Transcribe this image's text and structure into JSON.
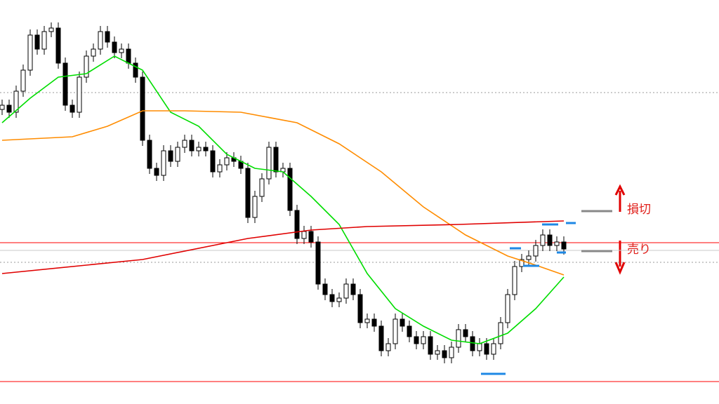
{
  "chart_data": {
    "type": "candlestick",
    "ylim": [
      0,
      576
    ],
    "open": [
      420,
      426,
      416,
      446,
      476,
      526,
      506,
      531,
      536,
      486,
      426,
      416,
      466,
      496,
      506,
      531,
      516,
      501,
      506,
      486,
      466,
      376,
      336,
      326,
      361,
      346,
      366,
      376,
      361,
      366,
      361,
      331,
      341,
      351,
      346,
      336,
      266,
      296,
      321,
      366,
      331,
      336,
      276,
      236,
      246,
      231,
      171,
      156,
      146,
      151,
      171,
      156,
      116,
      121,
      111,
      76,
      86,
      121,
      111,
      96,
      86,
      96,
      71,
      76,
      66,
      81,
      106,
      96,
      76,
      86,
      71,
      86,
      116,
      156,
      196,
      206,
      211,
      226,
      241,
      226,
      231
    ],
    "high": [
      434,
      434,
      454,
      484,
      534,
      534,
      539,
      544,
      544,
      494,
      434,
      474,
      504,
      514,
      539,
      539,
      524,
      514,
      514,
      494,
      474,
      384,
      344,
      369,
      369,
      374,
      384,
      384,
      374,
      374,
      369,
      349,
      359,
      359,
      354,
      344,
      304,
      329,
      374,
      374,
      344,
      344,
      284,
      254,
      254,
      239,
      179,
      164,
      159,
      179,
      179,
      164,
      129,
      129,
      119,
      94,
      129,
      129,
      119,
      104,
      104,
      104,
      84,
      84,
      89,
      114,
      114,
      104,
      94,
      94,
      94,
      124,
      164,
      204,
      214,
      219,
      234,
      249,
      249,
      239,
      239
    ],
    "low": [
      412,
      408,
      408,
      438,
      468,
      498,
      498,
      523,
      478,
      418,
      408,
      408,
      458,
      488,
      498,
      508,
      493,
      493,
      478,
      458,
      368,
      328,
      318,
      318,
      338,
      338,
      358,
      353,
      353,
      353,
      323,
      323,
      333,
      338,
      328,
      258,
      258,
      288,
      313,
      323,
      323,
      268,
      228,
      228,
      223,
      163,
      148,
      138,
      138,
      143,
      148,
      108,
      108,
      103,
      68,
      68,
      78,
      103,
      88,
      78,
      78,
      63,
      63,
      58,
      58,
      73,
      88,
      68,
      68,
      63,
      63,
      78,
      108,
      148,
      188,
      198,
      203,
      218,
      218,
      218,
      213
    ],
    "close": [
      426,
      416,
      446,
      476,
      526,
      506,
      531,
      536,
      486,
      426,
      416,
      466,
      496,
      506,
      531,
      516,
      501,
      506,
      486,
      466,
      376,
      336,
      326,
      361,
      346,
      366,
      376,
      361,
      366,
      361,
      331,
      341,
      351,
      346,
      336,
      266,
      296,
      321,
      366,
      331,
      336,
      276,
      236,
      246,
      231,
      171,
      156,
      146,
      151,
      171,
      156,
      116,
      121,
      111,
      76,
      86,
      121,
      111,
      96,
      86,
      96,
      71,
      76,
      66,
      81,
      106,
      96,
      76,
      86,
      71,
      86,
      116,
      156,
      196,
      206,
      211,
      226,
      241,
      226,
      231,
      221
    ],
    "lines": [
      {
        "color": "#00dd00",
        "x": [
          0,
          4,
          8,
          12,
          16,
          20,
          24,
          28,
          32,
          36,
          40,
          44,
          48,
          52,
          56,
          60,
          64,
          68,
          72,
          76,
          80
        ],
        "values": [
          401,
          436,
          466,
          471,
          496,
          476,
          416,
          396,
          356,
          336,
          331,
          296,
          256,
          186,
          136,
          111,
          91,
          86,
          101,
          136,
          181
        ]
      },
      {
        "color": "#ff8c00",
        "x": [
          0,
          10,
          15,
          20,
          26,
          34,
          42,
          48,
          54,
          60,
          66,
          72,
          76,
          80
        ],
        "values": [
          376,
          381,
          396,
          418,
          418,
          416,
          401,
          371,
          331,
          281,
          241,
          211,
          198,
          184
        ]
      },
      {
        "color": "#e00000",
        "x": [
          0,
          20,
          35,
          44,
          52,
          65,
          80
        ],
        "values": [
          186,
          206,
          236,
          248,
          253,
          256,
          261
        ]
      }
    ],
    "hlines": [
      {
        "color": "#ff0000",
        "style": "solid",
        "value": 230
      },
      {
        "color": "#ff0000",
        "style": "solid",
        "value": 32
      },
      {
        "color": "#999999",
        "style": "dotted",
        "value": 444
      },
      {
        "color": "#999999",
        "style": "dotted",
        "value": 202
      },
      {
        "color": "#c8c8c8",
        "style": "solid",
        "value": 219
      }
    ],
    "markers": [
      {
        "x": [
          68.2,
          71.7
        ],
        "value": 43
      },
      {
        "x": [
          72.3,
          73.9
        ],
        "value": 222
      },
      {
        "x": [
          74.2,
          76.5
        ],
        "value": 197
      },
      {
        "x": [
          76.9,
          79.2
        ],
        "value": 256
      },
      {
        "x": [
          80.3,
          81.7
        ],
        "value": 258
      },
      {
        "x": [
          79,
          80.3
        ],
        "value": 216
      }
    ],
    "annotations": [
      {
        "text": "損切",
        "value": 275
      },
      {
        "text": "売り",
        "value": 218
      }
    ]
  }
}
